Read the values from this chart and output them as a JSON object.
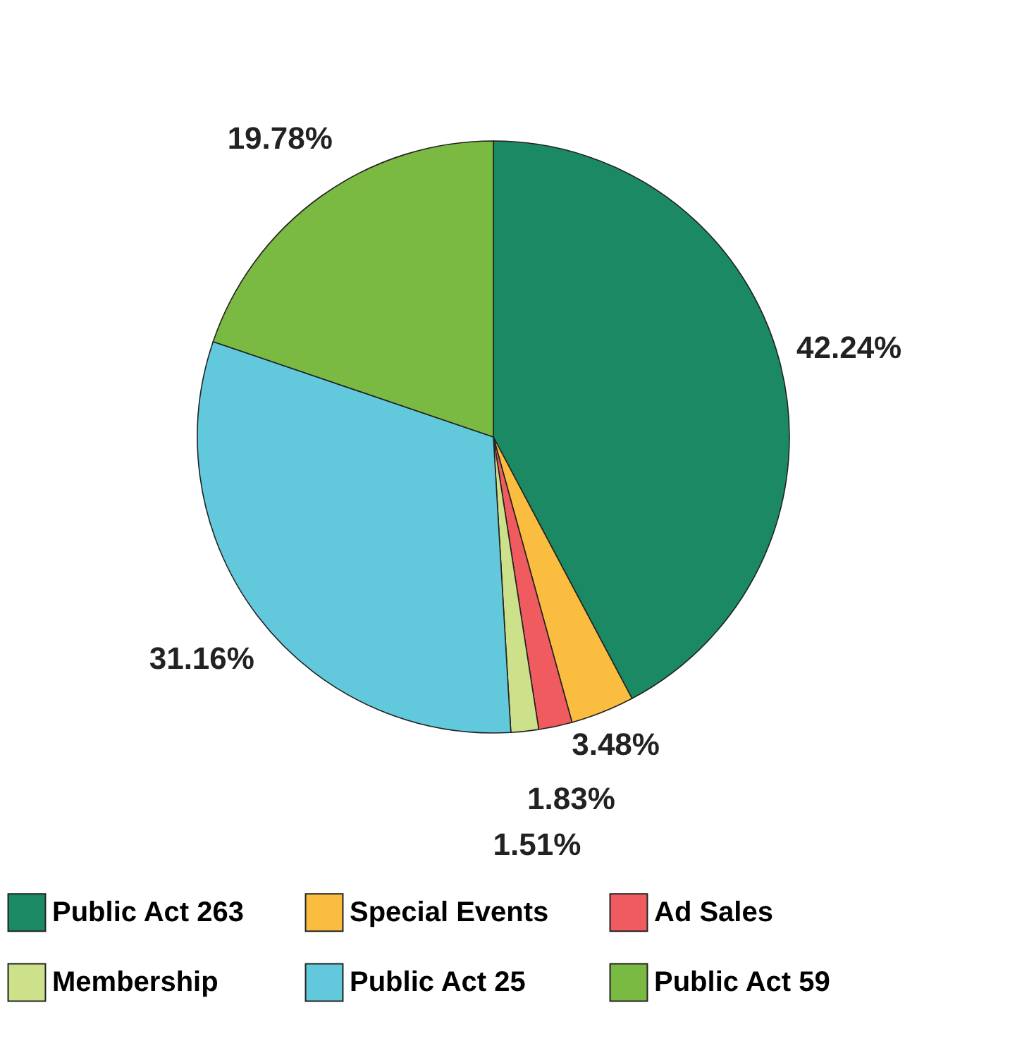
{
  "chart_data": {
    "type": "pie",
    "categories": [
      "Public Act 263",
      "Special Events",
      "Ad Sales",
      "Membership",
      "Public Act 25",
      "Public Act 59"
    ],
    "values": [
      42.24,
      3.48,
      1.83,
      1.51,
      31.16,
      19.78
    ],
    "value_labels": [
      "42.24%",
      "3.48%",
      "1.83%",
      "1.51%",
      "31.16%",
      "19.78%"
    ],
    "colors": [
      "#1b8a64",
      "#fbbd3f",
      "#ef5b5f",
      "#cde08a",
      "#62c9dd",
      "#7aba43"
    ],
    "legend": "bottom"
  }
}
